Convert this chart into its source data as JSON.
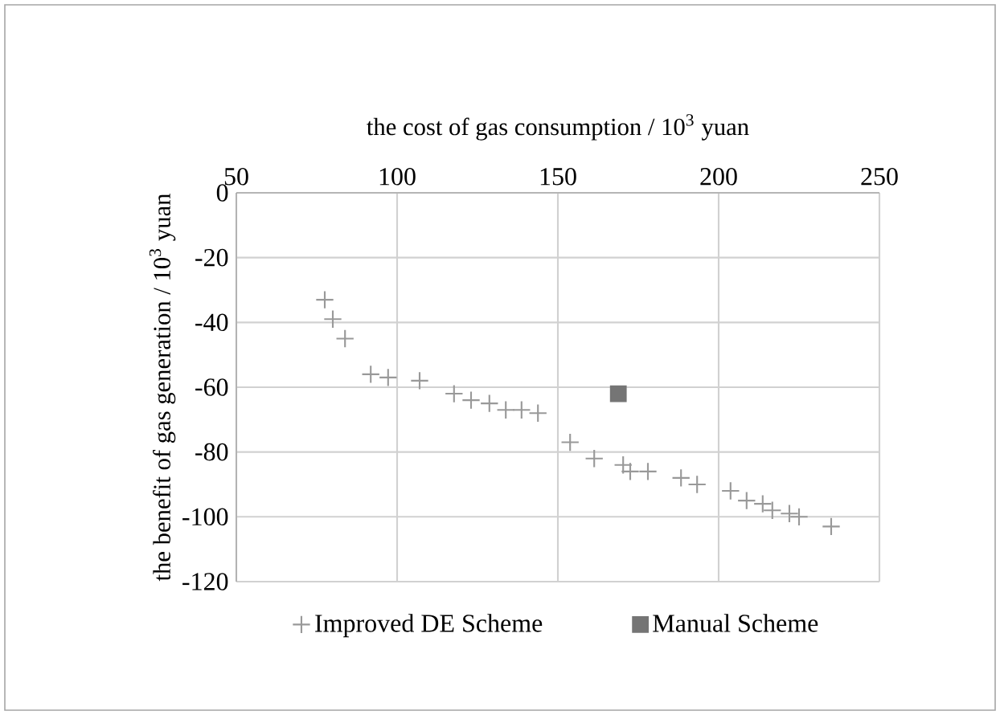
{
  "chart_data": {
    "type": "scatter",
    "xlabel": "the cost of gas consumption / 10$^{3}$ yuan",
    "ylabel": "the benefit of gas generation / 10$^{3}$ yuan",
    "xlim": [
      50,
      250
    ],
    "ylim": [
      -120,
      0
    ],
    "xticks": [
      50,
      100,
      150,
      200,
      250
    ],
    "yticks": [
      -120,
      -100,
      -80,
      -60,
      -40,
      -20,
      0
    ],
    "grid": true,
    "legend": "bottom",
    "series": [
      {
        "name": "Improved DE Scheme",
        "color": "#999999",
        "marker": "cross",
        "x": [
          77.5,
          80,
          83.8,
          91.8,
          97.2,
          107,
          117.7,
          123,
          128.7,
          133.8,
          138.7,
          143.8,
          153.8,
          161.3,
          170.3,
          172.5,
          178,
          188.3,
          193.3,
          203.7,
          208.7,
          213.7,
          216.7,
          222,
          225,
          235
        ],
        "values": [
          -33,
          -39,
          -45,
          -56,
          -57,
          -58,
          -62,
          -64,
          -65,
          -67,
          -67,
          -68,
          -77,
          -82,
          -84,
          -86,
          -86,
          -88,
          -90,
          -92,
          -95,
          -96,
          -98,
          -99,
          -100,
          -103
        ]
      },
      {
        "name": "Manual Scheme",
        "color": "#757575",
        "marker": "square",
        "x": [
          168.8
        ],
        "values": [
          -62
        ]
      }
    ]
  }
}
